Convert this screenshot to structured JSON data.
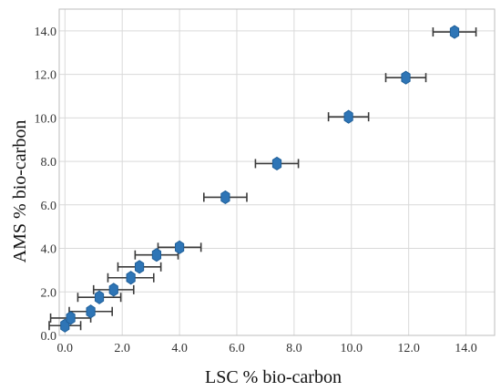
{
  "chart_data": {
    "type": "scatter",
    "xlabel": "LSC % bio-carbon",
    "ylabel": "AMS % bio-carbon",
    "xlim": [
      -0.2,
      15.0
    ],
    "ylim": [
      0.0,
      15.0
    ],
    "x_ticks": [
      "0.0",
      "2.0",
      "4.0",
      "6.0",
      "8.0",
      "10.0",
      "12.0",
      "14.0"
    ],
    "y_ticks": [
      "0.0",
      "2.0",
      "4.0",
      "6.0",
      "8.0",
      "10.0",
      "12.0",
      "14.0"
    ],
    "grid": true,
    "marker_color": "#2e75b6",
    "errorbar_color": "#3a3a3a",
    "points": [
      {
        "x": 0.0,
        "y": 0.45,
        "xerr": 0.55
      },
      {
        "x": 0.2,
        "y": 0.8,
        "xerr": 0.7
      },
      {
        "x": 0.9,
        "y": 1.1,
        "xerr": 0.75
      },
      {
        "x": 1.2,
        "y": 1.75,
        "xerr": 0.75
      },
      {
        "x": 1.7,
        "y": 2.1,
        "xerr": 0.7
      },
      {
        "x": 2.3,
        "y": 2.65,
        "xerr": 0.8
      },
      {
        "x": 2.6,
        "y": 3.15,
        "xerr": 0.75
      },
      {
        "x": 3.2,
        "y": 3.7,
        "xerr": 0.75
      },
      {
        "x": 4.0,
        "y": 4.05,
        "xerr": 0.75
      },
      {
        "x": 5.6,
        "y": 6.35,
        "xerr": 0.75
      },
      {
        "x": 7.4,
        "y": 7.9,
        "xerr": 0.75
      },
      {
        "x": 9.9,
        "y": 10.05,
        "xerr": 0.7
      },
      {
        "x": 11.9,
        "y": 11.85,
        "xerr": 0.7
      },
      {
        "x": 13.6,
        "y": 13.95,
        "xerr": 0.75
      }
    ]
  }
}
